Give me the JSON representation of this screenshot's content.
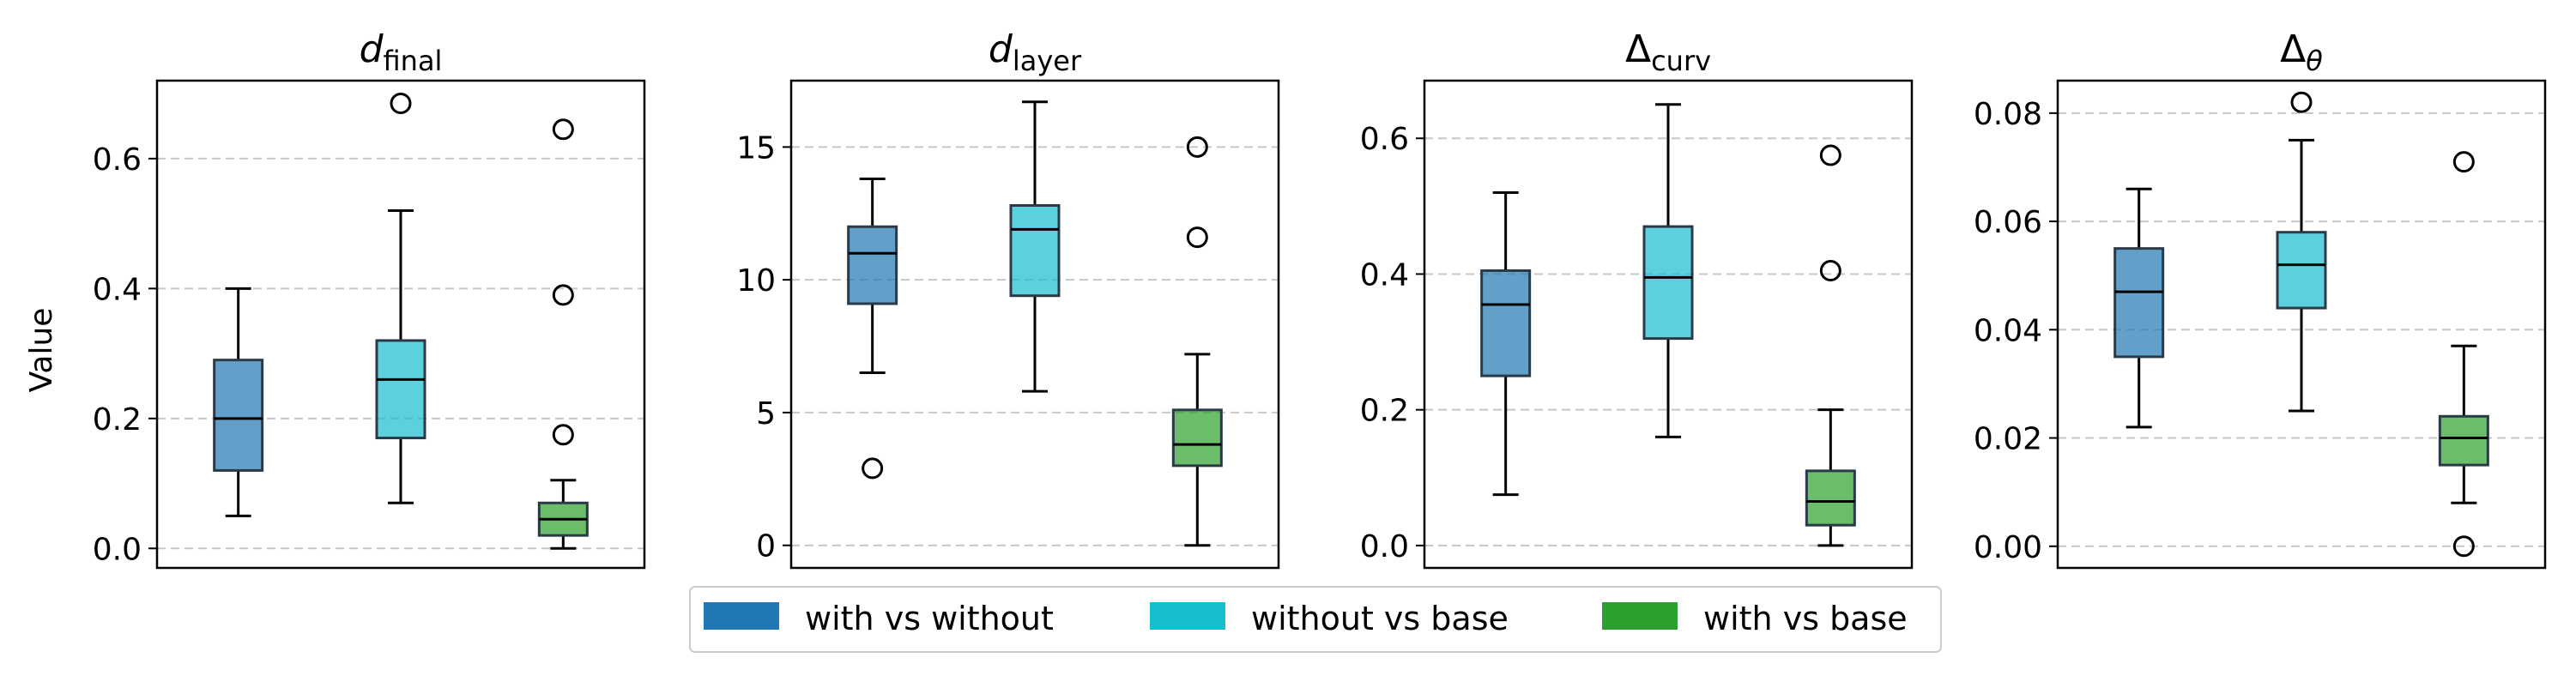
{
  "chart_data": {
    "type": "box",
    "y_axis_label": "Value",
    "legend": [
      {
        "label": "with vs without",
        "color": "#1f77b4"
      },
      {
        "label": "without vs base",
        "color": "#17becf"
      },
      {
        "label": "with vs base",
        "color": "#2ca02c"
      }
    ],
    "panels": [
      {
        "title_main": "d",
        "title_sub": "final",
        "title_italic": true,
        "ylim": [
          -0.03,
          0.72
        ],
        "yticks": [
          0.0,
          0.2,
          0.4,
          0.6
        ],
        "ytick_labels": [
          "0.0",
          "0.2",
          "0.4",
          "0.6"
        ],
        "boxes": [
          {
            "series": "with vs without",
            "whislo": 0.05,
            "q1": 0.12,
            "med": 0.2,
            "q3": 0.29,
            "whishi": 0.4,
            "fliers": []
          },
          {
            "series": "without vs base",
            "whislo": 0.07,
            "q1": 0.17,
            "med": 0.26,
            "q3": 0.32,
            "whishi": 0.52,
            "fliers": [
              0.685
            ]
          },
          {
            "series": "with vs base",
            "whislo": 0.0,
            "q1": 0.02,
            "med": 0.045,
            "q3": 0.07,
            "whishi": 0.105,
            "fliers": [
              0.645,
              0.39,
              0.175
            ]
          }
        ]
      },
      {
        "title_main": "d",
        "title_sub": "layer",
        "title_italic": true,
        "ylim": [
          -0.85,
          17.5
        ],
        "yticks": [
          0,
          5,
          10,
          15
        ],
        "ytick_labels": [
          "0",
          "5",
          "10",
          "15"
        ],
        "boxes": [
          {
            "series": "with vs without",
            "whislo": 6.5,
            "q1": 9.1,
            "med": 11.0,
            "q3": 12.0,
            "whishi": 13.8,
            "fliers": [
              2.9
            ]
          },
          {
            "series": "without vs base",
            "whislo": 5.8,
            "q1": 9.4,
            "med": 11.9,
            "q3": 12.8,
            "whishi": 16.7,
            "fliers": []
          },
          {
            "series": "with vs base",
            "whislo": 0.0,
            "q1": 3.0,
            "med": 3.8,
            "q3": 5.1,
            "whishi": 7.2,
            "fliers": [
              15.0,
              11.6
            ]
          }
        ]
      },
      {
        "title_main": "Δ",
        "title_sub": "curv",
        "title_italic": false,
        "ylim": [
          -0.033,
          0.685
        ],
        "yticks": [
          0.0,
          0.2,
          0.4,
          0.6
        ],
        "ytick_labels": [
          "0.0",
          "0.2",
          "0.4",
          "0.6"
        ],
        "boxes": [
          {
            "series": "with vs without",
            "whislo": 0.075,
            "q1": 0.25,
            "med": 0.355,
            "q3": 0.405,
            "whishi": 0.52,
            "fliers": []
          },
          {
            "series": "without vs base",
            "whislo": 0.16,
            "q1": 0.305,
            "med": 0.395,
            "q3": 0.47,
            "whishi": 0.65,
            "fliers": []
          },
          {
            "series": "with vs base",
            "whislo": 0.0,
            "q1": 0.03,
            "med": 0.065,
            "q3": 0.11,
            "whishi": 0.2,
            "fliers": [
              0.575,
              0.405
            ]
          }
        ]
      },
      {
        "title_main": "Δ",
        "title_sub": "θ",
        "title_italic": false,
        "ylim": [
          -0.004,
          0.086
        ],
        "yticks": [
          0.0,
          0.02,
          0.04,
          0.06,
          0.08
        ],
        "ytick_labels": [
          "0.00",
          "0.02",
          "0.04",
          "0.06",
          "0.08"
        ],
        "boxes": [
          {
            "series": "with vs without",
            "whislo": 0.022,
            "q1": 0.035,
            "med": 0.047,
            "q3": 0.055,
            "whishi": 0.066,
            "fliers": []
          },
          {
            "series": "without vs base",
            "whislo": 0.025,
            "q1": 0.044,
            "med": 0.052,
            "q3": 0.058,
            "whishi": 0.075,
            "fliers": [
              0.082
            ]
          },
          {
            "series": "with vs base",
            "whislo": 0.008,
            "q1": 0.015,
            "med": 0.02,
            "q3": 0.024,
            "whishi": 0.037,
            "fliers": [
              0.071,
              0.0
            ]
          }
        ]
      }
    ]
  }
}
